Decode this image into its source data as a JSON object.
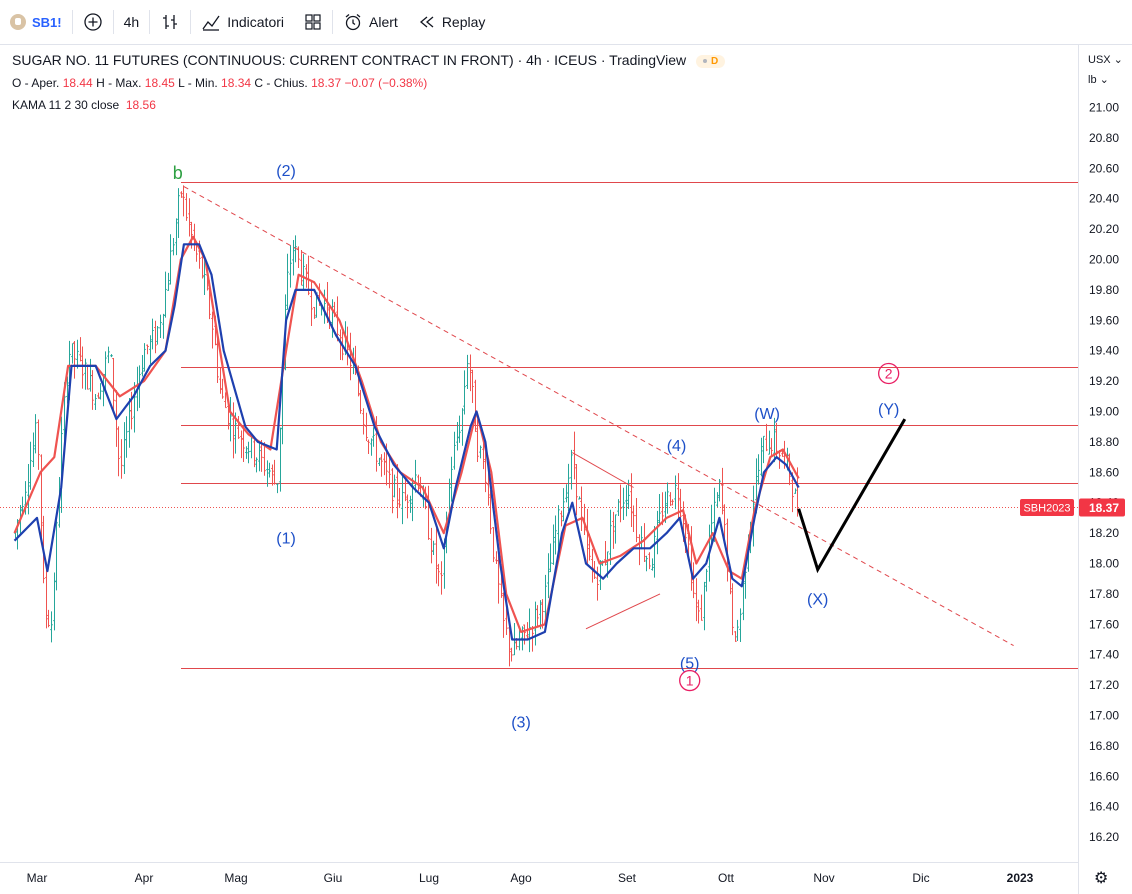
{
  "toolbar": {
    "symbol": "SB1!",
    "interval": "4h",
    "indicators_label": "Indicatori",
    "alert_label": "Alert",
    "replay_label": "Replay"
  },
  "legend": {
    "title": "SUGAR NO. 11 FUTURES (CONTINUOUS: CURRENT CONTRACT IN FRONT) · 4h · ICEUS · TradingView",
    "badge": "D",
    "o_label": "O - Aper.",
    "o_val": "18.44",
    "h_label": "H - Max.",
    "h_val": "18.45",
    "l_label": "L - Min.",
    "l_val": "18.34",
    "c_label": "C - Chius.",
    "c_val": "18.37",
    "change": "−0.07 (−0.38%)",
    "kama_label": "KAMA 11 2 30 close",
    "kama_val": "18.56"
  },
  "axis": {
    "currency": "USX",
    "unit": "lb"
  },
  "colors": {
    "up": "#26a69a",
    "down": "#ef5350",
    "kama_fast": "#1e40af",
    "kama_slow": "#ef5350",
    "level": "#e0474c",
    "wave_blue": "#1e50c8",
    "wave_pink": "#e91e63",
    "wave_green": "#2ea043",
    "projection": "#000000"
  },
  "chart_data": {
    "type": "candlestick",
    "ylim": [
      16.1,
      21.15
    ],
    "yticks": [
      "21.00",
      "20.80",
      "20.60",
      "20.40",
      "20.20",
      "20.00",
      "19.80",
      "19.60",
      "19.40",
      "19.20",
      "19.00",
      "18.80",
      "18.60",
      "18.40",
      "18.20",
      "18.00",
      "17.80",
      "17.60",
      "17.40",
      "17.20",
      "17.00",
      "16.80",
      "16.60",
      "16.40",
      "16.20"
    ],
    "x_labels": [
      "Mar",
      "Apr",
      "Mag",
      "Giu",
      "Lug",
      "Ago",
      "Set",
      "Ott",
      "Nov",
      "Dic",
      "2023"
    ],
    "last_price": "18.37",
    "last_price_label": "SBH2023",
    "price_path": [
      [
        "2022-02-22",
        18.2
      ],
      [
        "2022-02-26",
        18.6
      ],
      [
        "2022-03-01",
        18.9
      ],
      [
        "2022-03-03",
        17.7
      ],
      [
        "2022-03-05",
        17.6
      ],
      [
        "2022-03-08",
        18.8
      ],
      [
        "2022-03-10",
        19.4
      ],
      [
        "2022-03-14",
        19.3
      ],
      [
        "2022-03-18",
        19.1
      ],
      [
        "2022-03-22",
        19.4
      ],
      [
        "2022-03-25",
        18.6
      ],
      [
        "2022-03-29",
        19.1
      ],
      [
        "2022-04-01",
        19.4
      ],
      [
        "2022-04-05",
        19.5
      ],
      [
        "2022-04-08",
        19.8
      ],
      [
        "2022-04-11",
        20.2
      ],
      [
        "2022-04-13",
        20.45
      ],
      [
        "2022-04-17",
        20.1
      ],
      [
        "2022-04-20",
        19.9
      ],
      [
        "2022-04-23",
        19.6
      ],
      [
        "2022-04-26",
        19.1
      ],
      [
        "2022-04-30",
        18.9
      ],
      [
        "2022-05-04",
        18.8
      ],
      [
        "2022-05-08",
        18.7
      ],
      [
        "2022-05-12",
        18.6
      ],
      [
        "2022-05-14",
        18.5
      ],
      [
        "2022-05-17",
        19.8
      ],
      [
        "2022-05-19",
        20.1
      ],
      [
        "2022-05-22",
        19.9
      ],
      [
        "2022-05-26",
        19.7
      ],
      [
        "2022-05-30",
        19.7
      ],
      [
        "2022-06-03",
        19.5
      ],
      [
        "2022-06-07",
        19.3
      ],
      [
        "2022-06-11",
        18.9
      ],
      [
        "2022-06-15",
        18.7
      ],
      [
        "2022-06-19",
        18.5
      ],
      [
        "2022-06-23",
        18.4
      ],
      [
        "2022-06-27",
        18.6
      ],
      [
        "2022-06-30",
        18.3
      ],
      [
        "2022-07-03",
        18.0
      ],
      [
        "2022-07-05",
        17.85
      ],
      [
        "2022-07-08",
        18.6
      ],
      [
        "2022-07-12",
        19.0
      ],
      [
        "2022-07-14",
        19.4
      ],
      [
        "2022-07-17",
        18.8
      ],
      [
        "2022-07-20",
        18.6
      ],
      [
        "2022-07-23",
        18.0
      ],
      [
        "2022-07-26",
        17.6
      ],
      [
        "2022-07-29",
        17.4
      ],
      [
        "2022-08-01",
        17.5
      ],
      [
        "2022-08-04",
        17.6
      ],
      [
        "2022-08-08",
        17.8
      ],
      [
        "2022-08-11",
        18.2
      ],
      [
        "2022-08-14",
        18.5
      ],
      [
        "2022-08-16",
        18.7
      ],
      [
        "2022-08-19",
        18.2
      ],
      [
        "2022-08-22",
        17.9
      ],
      [
        "2022-08-25",
        18.0
      ],
      [
        "2022-08-28",
        18.3
      ],
      [
        "2022-09-01",
        18.5
      ],
      [
        "2022-09-04",
        18.2
      ],
      [
        "2022-09-08",
        18.0
      ],
      [
        "2022-09-12",
        18.4
      ],
      [
        "2022-09-16",
        18.5
      ],
      [
        "2022-09-19",
        18.2
      ],
      [
        "2022-09-21",
        17.8
      ],
      [
        "2022-09-23",
        17.6
      ],
      [
        "2022-09-26",
        18.2
      ],
      [
        "2022-09-29",
        18.5
      ],
      [
        "2022-10-01",
        18.1
      ],
      [
        "2022-10-03",
        17.5
      ],
      [
        "2022-10-05",
        17.6
      ],
      [
        "2022-10-08",
        18.2
      ],
      [
        "2022-10-10",
        18.5
      ],
      [
        "2022-10-13",
        18.8
      ],
      [
        "2022-10-16",
        18.8
      ],
      [
        "2022-10-19",
        18.7
      ],
      [
        "2022-10-21",
        18.6
      ],
      [
        "2022-10-23",
        18.4
      ],
      [
        "2022-10-24",
        18.37
      ]
    ],
    "kama_fast": [
      [
        "2022-02-22",
        18.15
      ],
      [
        "2022-03-01",
        18.3
      ],
      [
        "2022-03-04",
        17.95
      ],
      [
        "2022-03-08",
        18.5
      ],
      [
        "2022-03-11",
        19.3
      ],
      [
        "2022-03-18",
        19.3
      ],
      [
        "2022-03-24",
        18.95
      ],
      [
        "2022-03-29",
        19.1
      ],
      [
        "2022-04-03",
        19.3
      ],
      [
        "2022-04-08",
        19.4
      ],
      [
        "2022-04-11",
        19.7
      ],
      [
        "2022-04-14",
        20.1
      ],
      [
        "2022-04-19",
        20.1
      ],
      [
        "2022-04-23",
        19.9
      ],
      [
        "2022-04-27",
        19.4
      ],
      [
        "2022-05-04",
        18.9
      ],
      [
        "2022-05-08",
        18.8
      ],
      [
        "2022-05-14",
        18.75
      ],
      [
        "2022-05-17",
        19.6
      ],
      [
        "2022-05-20",
        19.8
      ],
      [
        "2022-05-26",
        19.8
      ],
      [
        "2022-06-02",
        19.5
      ],
      [
        "2022-06-08",
        19.3
      ],
      [
        "2022-06-14",
        18.9
      ],
      [
        "2022-06-20",
        18.65
      ],
      [
        "2022-06-26",
        18.5
      ],
      [
        "2022-07-01",
        18.4
      ],
      [
        "2022-07-06",
        18.1
      ],
      [
        "2022-07-10",
        18.5
      ],
      [
        "2022-07-15",
        18.9
      ],
      [
        "2022-07-17",
        19.0
      ],
      [
        "2022-07-20",
        18.8
      ],
      [
        "2022-07-25",
        18.0
      ],
      [
        "2022-07-29",
        17.5
      ],
      [
        "2022-08-03",
        17.5
      ],
      [
        "2022-08-08",
        17.55
      ],
      [
        "2022-08-13",
        18.2
      ],
      [
        "2022-08-16",
        18.4
      ],
      [
        "2022-08-20",
        18.0
      ],
      [
        "2022-08-25",
        17.9
      ],
      [
        "2022-08-29",
        18.0
      ],
      [
        "2022-09-03",
        18.1
      ],
      [
        "2022-09-08",
        18.1
      ],
      [
        "2022-09-13",
        18.2
      ],
      [
        "2022-09-17",
        18.3
      ],
      [
        "2022-09-21",
        17.9
      ],
      [
        "2022-09-25",
        18.0
      ],
      [
        "2022-09-29",
        18.3
      ],
      [
        "2022-10-03",
        17.9
      ],
      [
        "2022-10-06",
        17.85
      ],
      [
        "2022-10-10",
        18.3
      ],
      [
        "2022-10-13",
        18.6
      ],
      [
        "2022-10-17",
        18.7
      ],
      [
        "2022-10-20",
        18.65
      ],
      [
        "2022-10-24",
        18.5
      ]
    ],
    "kama_slow": [
      [
        "2022-02-22",
        18.2
      ],
      [
        "2022-03-02",
        18.6
      ],
      [
        "2022-03-06",
        18.7
      ],
      [
        "2022-03-10",
        19.3
      ],
      [
        "2022-03-18",
        19.3
      ],
      [
        "2022-03-25",
        19.1
      ],
      [
        "2022-04-01",
        19.2
      ],
      [
        "2022-04-08",
        19.4
      ],
      [
        "2022-04-13",
        20.0
      ],
      [
        "2022-04-17",
        20.15
      ],
      [
        "2022-04-21",
        20.0
      ],
      [
        "2022-04-25",
        19.5
      ],
      [
        "2022-04-29",
        19.0
      ],
      [
        "2022-05-05",
        18.85
      ],
      [
        "2022-05-12",
        18.75
      ],
      [
        "2022-05-17",
        19.4
      ],
      [
        "2022-05-21",
        19.9
      ],
      [
        "2022-05-26",
        19.85
      ],
      [
        "2022-06-03",
        19.6
      ],
      [
        "2022-06-10",
        19.2
      ],
      [
        "2022-06-16",
        18.8
      ],
      [
        "2022-06-22",
        18.6
      ],
      [
        "2022-06-29",
        18.5
      ],
      [
        "2022-07-06",
        18.2
      ],
      [
        "2022-07-12",
        18.6
      ],
      [
        "2022-07-17",
        19.0
      ],
      [
        "2022-07-22",
        18.6
      ],
      [
        "2022-07-27",
        17.8
      ],
      [
        "2022-08-01",
        17.55
      ],
      [
        "2022-08-08",
        17.6
      ],
      [
        "2022-08-14",
        18.25
      ],
      [
        "2022-08-19",
        18.3
      ],
      [
        "2022-08-24",
        18.0
      ],
      [
        "2022-08-30",
        18.05
      ],
      [
        "2022-09-06",
        18.15
      ],
      [
        "2022-09-13",
        18.3
      ],
      [
        "2022-09-18",
        18.35
      ],
      [
        "2022-09-22",
        18.0
      ],
      [
        "2022-09-27",
        18.2
      ],
      [
        "2022-10-02",
        17.95
      ],
      [
        "2022-10-06",
        17.9
      ],
      [
        "2022-10-10",
        18.35
      ],
      [
        "2022-10-15",
        18.7
      ],
      [
        "2022-10-19",
        18.75
      ],
      [
        "2022-10-24",
        18.56
      ]
    ],
    "levels": [
      20.51,
      19.29,
      18.91,
      18.53,
      17.31
    ],
    "trendline": [
      [
        "2022-04-14",
        20.48
      ],
      [
        "2022-12-30",
        17.46
      ]
    ],
    "projection": [
      [
        "2022-10-24",
        18.36
      ],
      [
        "2022-10-30",
        17.96
      ],
      [
        "2022-11-26",
        18.95
      ]
    ],
    "triangle": [
      [
        "2022-08-16",
        18.73
      ],
      [
        "2022-09-03",
        18.5
      ],
      [
        "2022-09-11",
        17.8
      ],
      [
        "2022-08-20",
        17.57
      ]
    ],
    "annotations": [
      {
        "text": "b",
        "date": "2022-04-12",
        "price": 20.57,
        "style": "green"
      },
      {
        "text": "(2)",
        "date": "2022-05-17",
        "price": 20.59,
        "style": "blue"
      },
      {
        "text": "(1)",
        "date": "2022-05-17",
        "price": 18.17,
        "style": "blue"
      },
      {
        "text": "(3)",
        "date": "2022-08-01",
        "price": 16.96,
        "style": "blue"
      },
      {
        "text": "(4)",
        "date": "2022-09-16",
        "price": 18.78,
        "style": "blue"
      },
      {
        "text": "(5)",
        "date": "2022-09-20",
        "price": 17.35,
        "style": "blue"
      },
      {
        "text": "(W)",
        "date": "2022-10-14",
        "price": 18.99,
        "style": "blue"
      },
      {
        "text": "(X)",
        "date": "2022-10-30",
        "price": 17.77,
        "style": "blue"
      },
      {
        "text": "(Y)",
        "date": "2022-11-21",
        "price": 19.02,
        "style": "blue"
      },
      {
        "text": "1",
        "date": "2022-09-20",
        "price": 17.23,
        "style": "pink-circle"
      },
      {
        "text": "2",
        "date": "2022-11-21",
        "price": 19.25,
        "style": "pink-circle"
      }
    ]
  }
}
